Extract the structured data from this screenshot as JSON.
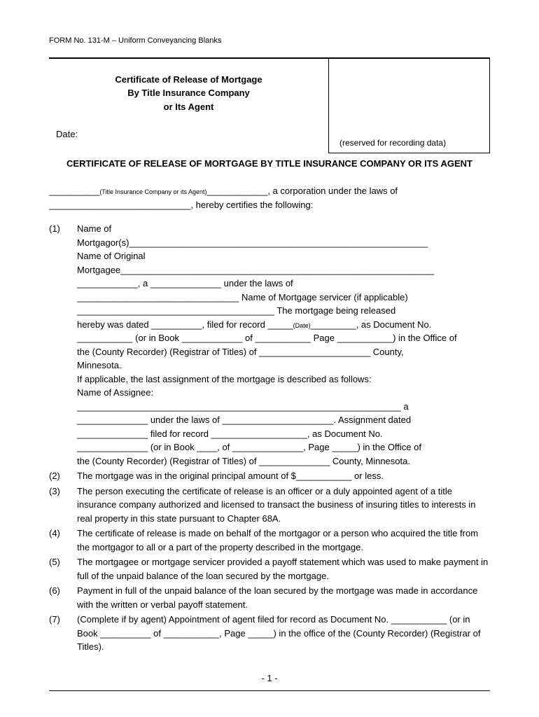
{
  "form_header": "FORM No. 131-M – Uniform Conveyancing Blanks",
  "cert_title_1": "Certificate of Release of Mortgage",
  "cert_title_2": "By Title Insurance Company",
  "cert_title_3": "or Its Agent",
  "date_label": "Date:",
  "reserved_text": "(reserved for recording data)",
  "main_title": "CERTIFICATE OF RELEASE OF MORTGAGE BY TITLE INSURANCE COMPANY OR ITS AGENT",
  "intro_small": "(Title Insurance Company or its Agent)",
  "intro_1": ", a corporation under the laws of",
  "intro_2": ", hereby certifies the following:",
  "items": {
    "1": {
      "line1": "Name of",
      "line2": "Mortgagor(s)___________________________________________________________",
      "line3": "Name of Original",
      "line4": "Mortgagee______________________________________________________________",
      "line5": "____________, a ______________ under the laws of",
      "line6": "________________________________ Name of Mortgage servicer (if applicable)",
      "line7": "_______________________________________ The mortgage being released",
      "line8_a": "hereby was dated __________, filed for record _____",
      "line8_small": "(Date)",
      "line8_b": "_________, as Document No.",
      "line9": "___________ (or in Book ____________ of ___________ Page ___________) in the Office of",
      "line10": "the (County Recorder) (Registrar of Titles) of ______________________ County,",
      "line11": "Minnesota.",
      "line12": "If applicable, the last assignment of the mortgage is described as follows:",
      "line13": "Name of Assignee:",
      "line14": "________________________________________________________________ a",
      "line15": "______________ under the laws of ______________________. Assignment dated",
      "line16": "______________ filed for record ___________________, as Document No.",
      "line17": "______________ (or in Book ____, of ______________, Page _____) in the Office of",
      "line18": "the (County Recorder) (Registrar of Titles) of ______________ County, Minnesota."
    },
    "2": "The mortgage was in the original principal amount of $___________ or less.",
    "3": "The person executing the certificate of release is an officer or a duly appointed agent of a title insurance company authorized and licensed to transact the business of insuring titles to interests in real property in this state pursuant to Chapter 68A.",
    "4": "The certificate of release is made on behalf of the mortgagor or a person who acquired the title from the mortgagor to all or a part of the property described in the mortgage.",
    "5": "The mortgagee or mortgage servicer provided a payoff statement which was used to make payment in full of the unpaid balance of the loan secured by the mortgage.",
    "6": "Payment in full of the unpaid balance of the loan secured by the mortgage was made in accordance with the written or verbal payoff statement.",
    "7": "(Complete if by agent) Appointment of agent filed for record as Document No. ___________ (or in Book __________ of ___________, Page _____) in the office of the (County Recorder) (Registrar of Titles)."
  },
  "page_num": "- 1 -"
}
